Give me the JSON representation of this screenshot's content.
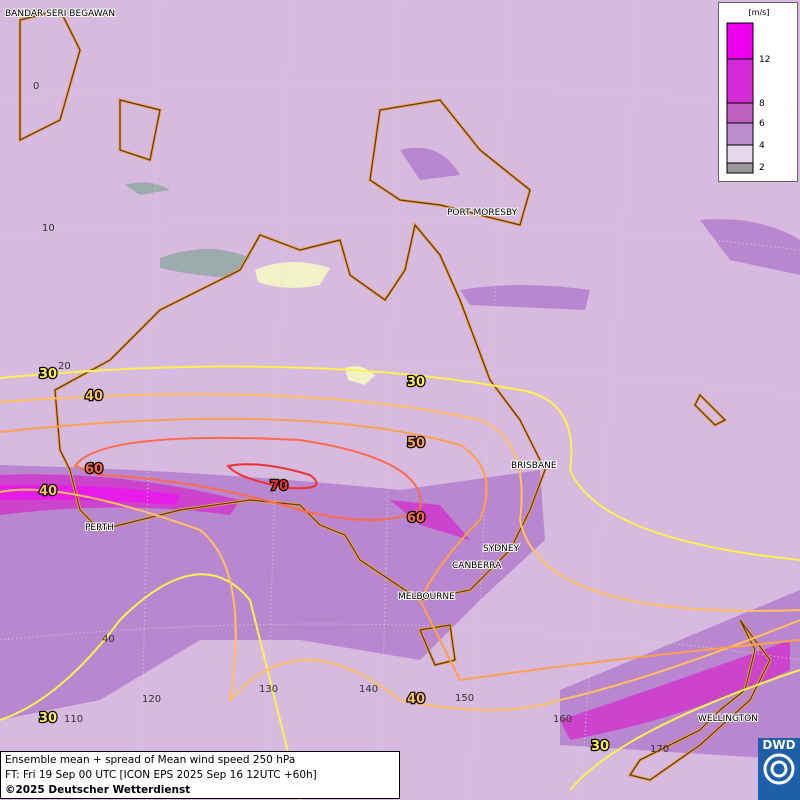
{
  "map": {
    "cities": [
      "BANDAR SERI BEGAWAN",
      "PORT MORESBY",
      "BRISBANE",
      "PERTH",
      "SYDNEY",
      "CANBERRA",
      "MELBOURNE",
      "WELLINGTON"
    ],
    "grid_labels": [
      "0",
      "10",
      "20",
      "40",
      "110",
      "120",
      "130",
      "140",
      "150",
      "160",
      "170"
    ],
    "contour_labels": [
      30,
      40,
      30,
      50,
      60,
      70,
      40,
      60,
      40,
      30,
      30
    ],
    "legend": {
      "unit": "[m/s]",
      "ticks": [
        12,
        8,
        6,
        4,
        2
      ]
    },
    "caption": [
      "Ensemble mean + spread of Mean wind speed 250 hPa",
      "FT: Fri 19 Sep 00 UTC [ICON EPS 2025 Sep 16 12UTC +60h]",
      "©2025 Deutscher Wetterdienst"
    ],
    "logo": "DWD"
  }
}
